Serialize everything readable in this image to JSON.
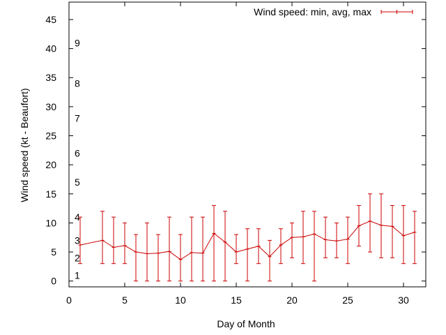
{
  "chart_data": {
    "type": "line",
    "title": "",
    "xlabel": "Day of Month",
    "ylabel": "Wind speed (kt - Beaufort)",
    "xlim": [
      0,
      32
    ],
    "ylim": [
      -1,
      48
    ],
    "x_ticks": [
      0,
      5,
      10,
      15,
      20,
      25,
      30
    ],
    "y_ticks": [
      0,
      5,
      10,
      15,
      20,
      25,
      30,
      35,
      40,
      45
    ],
    "x_tick_labels": [
      "0",
      "5",
      "10",
      "15",
      "20",
      "25",
      "30"
    ],
    "y_tick_labels": [
      "0",
      "5",
      "10",
      "15",
      "20",
      "25",
      "30",
      "35",
      "40",
      "45"
    ],
    "grid": false,
    "legend_position": "top-right",
    "series": [
      {
        "name": "Wind speed: min, avg, max",
        "color": "#cc0000",
        "x": [
          1,
          3,
          4,
          5,
          6,
          7,
          8,
          9,
          10,
          11,
          12,
          13,
          14,
          15,
          16,
          17,
          18,
          19,
          20,
          21,
          22,
          23,
          24,
          25,
          26,
          27,
          28,
          29,
          30,
          31
        ],
        "avg": [
          6.2,
          7.0,
          5.8,
          6.1,
          5.0,
          4.7,
          4.8,
          5.1,
          3.7,
          4.9,
          4.8,
          8.2,
          6.7,
          5.0,
          5.5,
          6.0,
          4.2,
          6.2,
          7.5,
          7.6,
          8.1,
          7.1,
          6.9,
          7.2,
          9.5,
          10.3,
          9.6,
          9.4,
          7.8,
          8.4
        ],
        "min": [
          3,
          3,
          3,
          3,
          0,
          0,
          0,
          0,
          0,
          0,
          0,
          0,
          0,
          3,
          0,
          3,
          0,
          3,
          4,
          3,
          0,
          4,
          4,
          3,
          6,
          5,
          4,
          4,
          3,
          3
        ],
        "max": [
          11,
          12,
          11,
          10,
          8,
          10,
          8,
          11,
          8,
          11,
          11,
          13,
          12,
          8,
          9,
          9,
          7,
          9,
          10,
          12,
          12,
          11,
          10,
          11,
          13,
          15,
          15,
          13,
          13,
          12
        ]
      }
    ],
    "beaufort_labels": [
      {
        "label": "1",
        "y": 1.0
      },
      {
        "label": "2",
        "y": 4.0
      },
      {
        "label": "3",
        "y": 7.0
      },
      {
        "label": "4",
        "y": 11.0
      },
      {
        "label": "5",
        "y": 17.0
      },
      {
        "label": "6",
        "y": 22.0
      },
      {
        "label": "7",
        "y": 28.0
      },
      {
        "label": "8",
        "y": 34.0
      },
      {
        "label": "9",
        "y": 41.0
      }
    ]
  }
}
